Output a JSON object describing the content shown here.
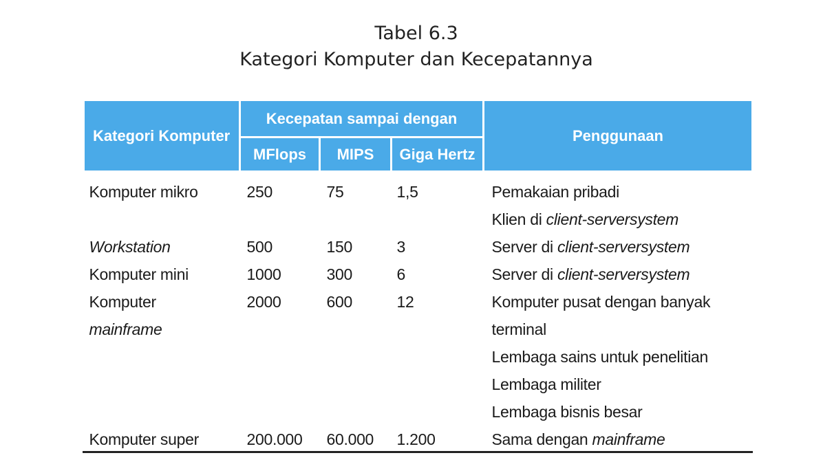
{
  "title": {
    "line1": "Tabel 6.3",
    "line2": "Kategori Komputer dan Kecepatannya"
  },
  "header": {
    "kategori": "Kategori Komputer",
    "kecepatan": "Kecepatan sampai dengan",
    "mflops": "MFlops",
    "mips": "MIPS",
    "ghz": "Giga Hertz",
    "penggunaan": "Penggunaan"
  },
  "rows": [
    {
      "kategori": "Komputer mikro",
      "mflops": "250",
      "mips": "75",
      "ghz": "1,5",
      "use1": "Pemakaian pribadi",
      "use2_pre": "Klien di ",
      "use2_it": "client-serversystem"
    },
    {
      "kategori_it": "Workstation",
      "mflops": "500",
      "mips": "150",
      "ghz": "3",
      "use_pre": "Server di ",
      "use_it": "client-serversystem"
    },
    {
      "kategori": "Komputer mini",
      "mflops": "1000",
      "mips": "300",
      "ghz": "6",
      "use_pre": "Server di ",
      "use_it": "client-serversystem"
    },
    {
      "kategori": "Komputer",
      "kategori_it": "mainframe",
      "mflops": "2000",
      "mips": "600",
      "ghz": "12",
      "use1": "Komputer pusat dengan banyak",
      "use2": "terminal",
      "use3": "Lembaga sains untuk penelitian",
      "use4": "Lembaga militer",
      "use5": "Lembaga bisnis besar"
    },
    {
      "kategori": "Komputer super",
      "mflops": "200.000",
      "mips": "60.000",
      "ghz": "1.200",
      "use_pre": "Sama dengan ",
      "use_it": "mainframe"
    }
  ]
}
